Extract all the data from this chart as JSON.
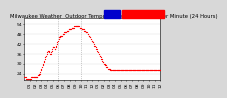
{
  "title_line": "Milwaukee Weather  Outdoor Temperature vs Wind Chill per Minute (24 Hours)",
  "bg_color": "#d8d8d8",
  "plot_bg": "#ffffff",
  "temp_color": "#ff0000",
  "legend_temp_color": "#0000cc",
  "legend_wind_color": "#ff0000",
  "ylim": [
    20,
    58
  ],
  "xlim": [
    0,
    1440
  ],
  "vline1_x": 360,
  "vline2_x": 600,
  "temp_data": [
    22,
    22,
    22,
    21,
    21,
    21,
    21,
    21,
    21,
    21,
    21,
    21,
    22,
    22,
    22,
    22,
    22,
    22,
    22,
    22,
    22,
    22,
    22,
    22,
    23,
    23,
    24,
    24,
    25,
    26,
    27,
    28,
    29,
    30,
    31,
    32,
    33,
    34,
    35,
    36,
    37,
    38,
    38,
    38,
    37,
    36,
    36,
    37,
    38,
    39,
    40,
    40,
    40,
    39,
    39,
    40,
    41,
    42,
    43,
    44,
    45,
    46,
    46,
    47,
    47,
    47,
    47,
    48,
    48,
    48,
    49,
    49,
    49,
    49,
    50,
    50,
    50,
    50,
    51,
    51,
    51,
    51,
    51,
    52,
    52,
    52,
    52,
    52,
    53,
    53,
    53,
    53,
    53,
    53,
    53,
    53,
    53,
    52,
    52,
    52,
    52,
    51,
    51,
    51,
    51,
    50,
    50,
    50,
    49,
    49,
    49,
    48,
    48,
    47,
    47,
    46,
    46,
    45,
    44,
    44,
    43,
    43,
    42,
    41,
    41,
    40,
    39,
    39,
    38,
    37,
    37,
    36,
    35,
    35,
    34,
    33,
    33,
    32,
    31,
    31,
    30,
    30,
    29,
    29,
    28,
    28,
    28,
    27,
    27,
    27,
    27,
    26,
    26,
    26,
    26,
    26,
    26,
    26,
    26,
    26,
    26,
    26,
    26,
    26,
    26,
    26,
    26,
    26,
    26,
    26,
    26,
    26,
    26,
    26,
    26,
    26,
    26,
    26,
    26,
    26,
    26,
    26,
    26,
    26,
    26,
    26,
    26,
    26,
    26,
    26,
    26,
    26,
    26,
    26,
    26,
    26,
    26,
    26,
    26,
    26,
    26,
    26,
    26,
    26,
    26,
    26,
    26,
    26,
    26,
    26,
    26,
    26,
    26,
    26,
    26,
    26,
    26,
    26,
    26,
    26,
    26,
    26,
    26,
    26,
    26,
    26,
    26,
    26,
    26,
    26,
    26,
    26,
    26,
    26,
    26,
    26,
    26,
    26,
    26,
    26
  ],
  "ytick_vals": [
    24,
    30,
    36,
    42,
    48,
    54
  ],
  "ytick_labels": [
    "24",
    "30",
    "36",
    "42",
    "48",
    "54"
  ],
  "xtick_labels": [
    "01",
    "02",
    "03",
    "04",
    "05",
    "06",
    "07",
    "08",
    "09",
    "10",
    "11",
    "12",
    "01",
    "02",
    "03",
    "04",
    "05",
    "06",
    "07",
    "08",
    "09",
    "10",
    "11",
    "12"
  ],
  "xtick_positions": [
    60,
    120,
    180,
    240,
    300,
    360,
    420,
    480,
    540,
    600,
    660,
    720,
    780,
    840,
    900,
    960,
    1020,
    1080,
    1140,
    1200,
    1260,
    1320,
    1380,
    1440
  ],
  "title_fontsize": 3.8,
  "tick_fontsize": 3.2,
  "dot_size": 0.8
}
